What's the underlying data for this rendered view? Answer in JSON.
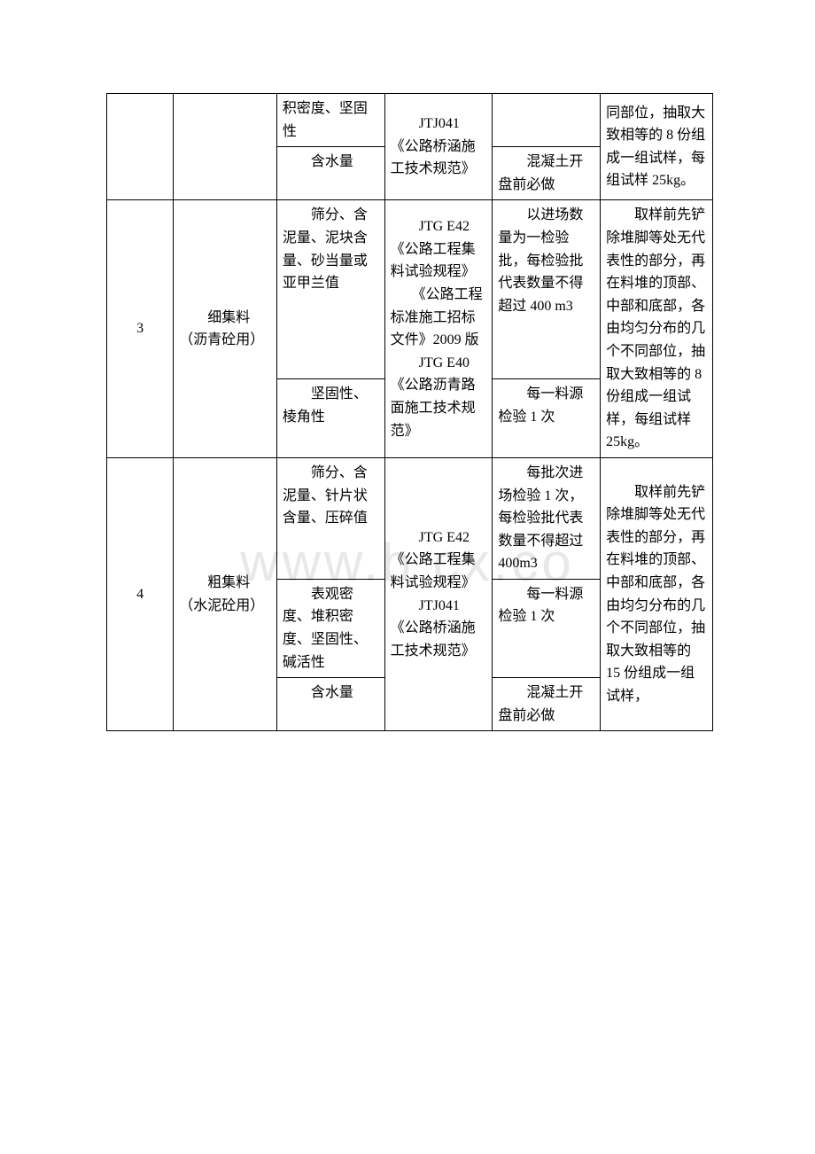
{
  "watermark": "www.b    cx.co",
  "table": {
    "row0": {
      "c2": "积密度、坚固性",
      "c3": "JTJ041《公路桥涵施工技术规范》",
      "c5": "同部位，抽取大致相等的 8 份组成一组试样，每组试样 25kg。"
    },
    "row0b": {
      "c2": "　　含水量",
      "c4": "　　混凝土开盘前必做"
    },
    "row1": {
      "c0": "3",
      "c1": "　　细集料（沥青砼用）",
      "c2a": "　　筛分、含泥量、泥块含量、砂当量或亚甲兰值",
      "c3": "　　JTG E42《公路工程集料试验规程》\n　　《公路工程标准施工招标文件》2009 版\n　　JTG E40《公路沥青路面施工技术规范》",
      "c4a": "　　以进场数量为一检验批，每检验批代表数量不得超过 400 m3",
      "c2b": "　　坚固性、棱角性",
      "c4b": "　　每一料源检验 1 次",
      "c5": "　　取样前先铲除堆脚等处无代表性的部分，再在料堆的顶部、中部和底部，各由均匀分布的几个不同部位，抽取大致相等的 8 份组成一组试样，每组试样 25kg。"
    },
    "row2": {
      "c0": "4",
      "c1": "　　粗集料（水泥砼用）",
      "c2a": "　　筛分、含泥量、针片状含量、压碎值",
      "c3": "　　JTG E42《公路工程集料试验规程》\n　　JTJ041《公路桥涵施工技术规范》",
      "c4a": "　　每批次进场检验 1 次，每检验批代表数量不得超过 400m3",
      "c2b": "　　表观密度、堆积密度、坚固性、碱活性",
      "c4b": "　　每一料源检验 1 次",
      "c2c": "　　含水量",
      "c4c": "　　混凝土开盘前必做",
      "c5": "　　取样前先铲除堆脚等处无代表性的部分，再在料堆的顶部、中部和底部，各由均匀分布的几个不同部位，抽取大致相等的 15 份组成一组试样，"
    }
  }
}
